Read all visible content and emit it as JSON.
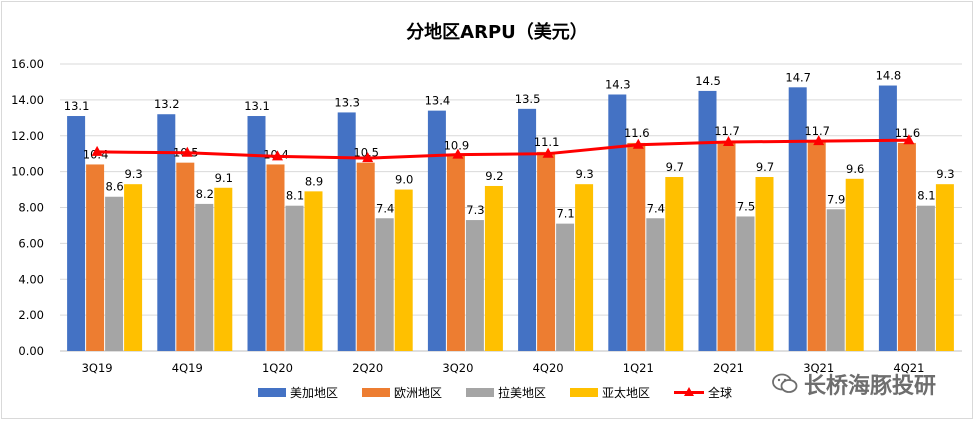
{
  "chart_data": {
    "type": "bar",
    "title": "分地区ARPU（美元）",
    "categories": [
      "3Q19",
      "4Q19",
      "1Q20",
      "2Q20",
      "3Q20",
      "4Q20",
      "1Q21",
      "2Q21",
      "3Q21",
      "4Q21"
    ],
    "ylim": [
      0,
      16
    ],
    "yticks": [
      "0.00",
      "2.00",
      "4.00",
      "6.00",
      "8.00",
      "10.00",
      "12.00",
      "14.00",
      "16.00"
    ],
    "grid": true,
    "legend_position": "bottom",
    "series": [
      {
        "name": "美加地区",
        "type": "bar",
        "color": "#4472C4",
        "values": [
          13.1,
          13.2,
          13.1,
          13.3,
          13.4,
          13.5,
          14.3,
          14.5,
          14.7,
          14.8
        ]
      },
      {
        "name": "欧洲地区",
        "type": "bar",
        "color": "#ED7D31",
        "values": [
          10.4,
          10.5,
          10.4,
          10.5,
          10.9,
          11.1,
          11.6,
          11.7,
          11.7,
          11.6
        ]
      },
      {
        "name": "拉美地区",
        "type": "bar",
        "color": "#A5A5A5",
        "values": [
          8.6,
          8.2,
          8.1,
          7.4,
          7.3,
          7.1,
          7.4,
          7.5,
          7.9,
          8.1
        ]
      },
      {
        "name": "亚太地区",
        "type": "bar",
        "color": "#FFC000",
        "values": [
          9.3,
          9.1,
          8.9,
          9.0,
          9.2,
          9.3,
          9.7,
          9.7,
          9.6,
          9.3
        ]
      },
      {
        "name": "全球",
        "type": "line",
        "color": "#FF0000",
        "values": [
          11.1,
          11.05,
          10.85,
          10.75,
          10.95,
          11.0,
          11.5,
          11.65,
          11.7,
          11.75
        ]
      }
    ]
  },
  "watermark": {
    "text": "长桥海豚投研",
    "icon": "wechat-icon"
  }
}
